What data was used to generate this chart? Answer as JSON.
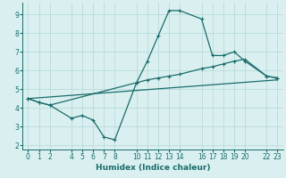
{
  "xlabel": "Humidex (Indice chaleur)",
  "bg_color": "#daf0f0",
  "line_color": "#1a6b6b",
  "grid_color": "#b8dada",
  "xticks": [
    0,
    1,
    2,
    4,
    5,
    6,
    7,
    8,
    10,
    11,
    12,
    13,
    14,
    16,
    17,
    18,
    19,
    20,
    22,
    23
  ],
  "yticks": [
    2,
    3,
    4,
    5,
    6,
    7,
    8,
    9
  ],
  "xlim": [
    -0.5,
    23.5
  ],
  "ylim": [
    1.8,
    9.6
  ],
  "series1_x": [
    0,
    1,
    2,
    10,
    11,
    12,
    13,
    14,
    16,
    17,
    18,
    19,
    20,
    22,
    23
  ],
  "series1_y": [
    4.5,
    4.3,
    4.15,
    5.35,
    6.5,
    7.85,
    9.2,
    9.2,
    8.75,
    6.8,
    6.8,
    7.0,
    6.5,
    5.7,
    5.6
  ],
  "series2_x": [
    0,
    1,
    2,
    4,
    5,
    6,
    7,
    8,
    10,
    11,
    12,
    13,
    14,
    16,
    17,
    18,
    19,
    20,
    22,
    23
  ],
  "series2_y": [
    4.5,
    4.3,
    4.15,
    3.45,
    3.6,
    3.35,
    2.45,
    2.3,
    5.35,
    5.5,
    5.6,
    5.7,
    5.8,
    6.1,
    6.2,
    6.35,
    6.5,
    6.6,
    5.7,
    5.6
  ],
  "series3_x": [
    0,
    23
  ],
  "series3_y": [
    4.5,
    5.5
  ],
  "linewidth": 0.9,
  "marker_size": 3.5
}
